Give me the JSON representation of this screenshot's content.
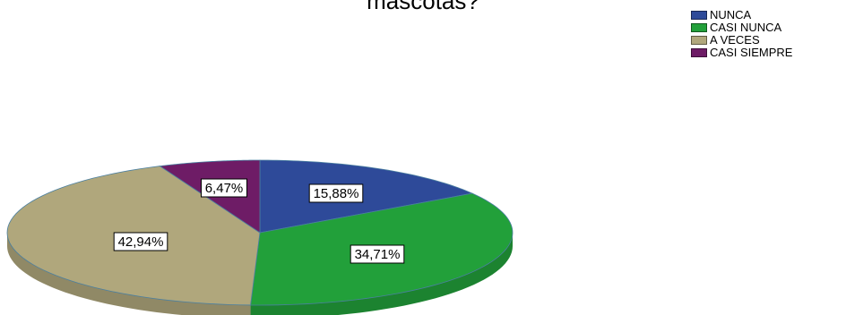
{
  "chart_data": {
    "type": "pie",
    "title": "mascotas?",
    "legend_position": "top-right",
    "categories": [
      "NUNCA",
      "CASI NUNCA",
      "A VECES",
      "CASI SIEMPRE"
    ],
    "values": [
      15.88,
      34.71,
      42.94,
      6.47
    ],
    "value_labels": [
      "15,88%",
      "34,71%",
      "42,94%",
      "6,47%"
    ],
    "colors": [
      "#2E4A99",
      "#22A03A",
      "#B0A77C",
      "#6E1C66"
    ]
  }
}
